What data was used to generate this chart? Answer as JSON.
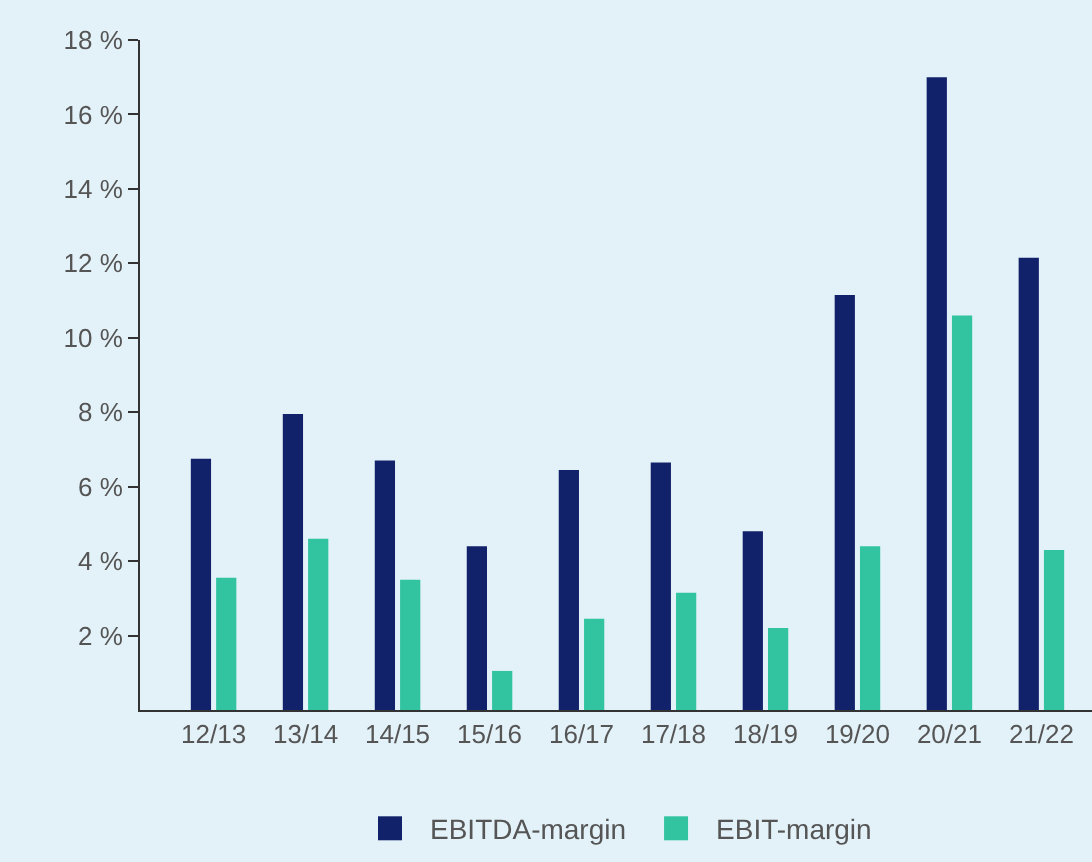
{
  "chart_data": {
    "type": "bar",
    "categories": [
      "12/13",
      "13/14",
      "14/15",
      "15/16",
      "16/17",
      "17/18",
      "18/19",
      "19/20",
      "20/21",
      "21/22"
    ],
    "series": [
      {
        "name": "EBITDA-margin",
        "color": "#12226a",
        "values": [
          6.75,
          7.95,
          6.7,
          4.4,
          6.45,
          6.65,
          4.8,
          11.15,
          17.0,
          12.15
        ]
      },
      {
        "name": "EBIT-margin",
        "color": "#32c4a0",
        "values": [
          3.55,
          4.6,
          3.5,
          1.05,
          2.45,
          3.15,
          2.2,
          4.4,
          10.6,
          4.3
        ]
      }
    ],
    "ylim": [
      0,
      18
    ],
    "yticks": [
      {
        "value": 2,
        "label": "2 %"
      },
      {
        "value": 4,
        "label": "4 %"
      },
      {
        "value": 6,
        "label": "6 %"
      },
      {
        "value": 8,
        "label": "8 %"
      },
      {
        "value": 10,
        "label": "10 %"
      },
      {
        "value": 12,
        "label": "12 %"
      },
      {
        "value": 14,
        "label": "14 %"
      },
      {
        "value": 16,
        "label": "16 %"
      },
      {
        "value": 18,
        "label": "18 %"
      }
    ],
    "grid": false,
    "legend": "bottom"
  }
}
